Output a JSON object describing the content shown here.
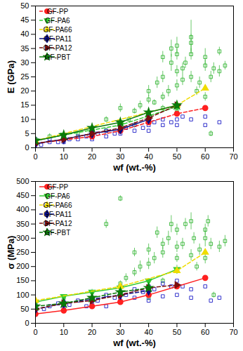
{
  "chart_data": [
    {
      "type": "scatter",
      "x_label": "wf (wt.-%)",
      "y_label": "E (GPa)",
      "xlim": [
        0,
        70
      ],
      "xticks": [
        0,
        10,
        20,
        30,
        40,
        50,
        60,
        70
      ],
      "ylim": [
        0,
        50
      ],
      "yticks": [
        0,
        5,
        10,
        15,
        20,
        25,
        30,
        35,
        40,
        45,
        50
      ],
      "grid": false,
      "legend": "upper left",
      "series": [
        {
          "name": "GF-PP",
          "color": "#ff2020",
          "marker": "circle",
          "line_style": "dashed",
          "x": [
            0,
            20,
            30,
            40,
            50,
            60
          ],
          "values": [
            1.5,
            4,
            6,
            9,
            12,
            14
          ]
        },
        {
          "name": "GF-PA6",
          "color": "#33cc33",
          "marker": "triangle-down",
          "line_style": "dashed",
          "x": [
            0,
            10,
            30,
            50
          ],
          "values": [
            2.5,
            4.5,
            8,
            14.5
          ]
        },
        {
          "name": "GF-PA66",
          "color": "#f0dc00",
          "marker": "triangle-up",
          "line_style": "dashed",
          "x": [
            0,
            50,
            60
          ],
          "values": [
            2.5,
            15,
            21
          ]
        },
        {
          "name": "GF-PA11",
          "color": "#0a0a80",
          "marker": "diamond",
          "line_style": "solid",
          "x": [
            0,
            10,
            20,
            30,
            40
          ],
          "values": [
            1.5,
            3,
            5,
            6.5,
            10
          ]
        },
        {
          "name": "GF-PA12",
          "color": "#7a1010",
          "marker": "triangle-right",
          "line_style": "dashed",
          "x": [
            0,
            10,
            20,
            30,
            40,
            50
          ],
          "values": [
            1.5,
            3,
            5,
            7,
            10.5,
            15
          ]
        },
        {
          "name": "GF-PBT",
          "color": "#0a7a0a",
          "marker": "star",
          "line_style": "solid",
          "x": [
            0,
            10,
            20,
            30,
            40,
            50
          ],
          "values": [
            2.5,
            4.5,
            7,
            9,
            12.5,
            15
          ]
        }
      ],
      "scatter_points": [
        {
          "color": "#44bb44",
          "marker": "square",
          "x": [
            20,
            25,
            30,
            30,
            33,
            35,
            37,
            40,
            40,
            40,
            42,
            43,
            45,
            45,
            45,
            47,
            48,
            48,
            50,
            50,
            50,
            50,
            52,
            52,
            53,
            55,
            55,
            55,
            57,
            58,
            60,
            60,
            60,
            62,
            63,
            65,
            65,
            67,
            62,
            10,
            15,
            0,
            5,
            25,
            35,
            45,
            50,
            55
          ],
          "y": [
            5,
            6,
            9,
            14,
            10,
            13,
            15,
            12,
            17,
            20,
            16,
            23,
            14,
            18,
            25,
            20,
            30,
            35,
            22,
            27,
            33,
            13,
            28,
            24,
            30,
            39,
            25,
            33,
            20,
            23,
            18,
            29,
            32,
            25,
            28,
            34,
            27,
            29,
            5,
            4,
            5,
            3,
            4,
            10,
            8,
            32,
            36,
            37
          ],
          "error": [
            1,
            1,
            1,
            1.5,
            1,
            1,
            1.5,
            1,
            1.5,
            2,
            1,
            2,
            1,
            1.5,
            2,
            2,
            3,
            3,
            2,
            2,
            2,
            1,
            2,
            2,
            2,
            6,
            2,
            2,
            1.5,
            2,
            1.5,
            2,
            3,
            2,
            2,
            1.5,
            2,
            1.5,
            1,
            1,
            1,
            0.5,
            1,
            1,
            1,
            2,
            3,
            3
          ]
        },
        {
          "color": "#3434cc",
          "marker": "square",
          "x": [
            0,
            0,
            0,
            0,
            2,
            5,
            5,
            8,
            10,
            10,
            10,
            12,
            15,
            15,
            18,
            20,
            20,
            20,
            20,
            22,
            25,
            25,
            28,
            30,
            30,
            30,
            30,
            32,
            35,
            35,
            38,
            40,
            40,
            40,
            42,
            45,
            45,
            48,
            50,
            50,
            50,
            52,
            55,
            60,
            60,
            65
          ],
          "y": [
            1,
            2,
            1.5,
            3,
            1,
            2,
            3,
            2,
            2,
            3,
            4,
            3,
            3,
            4,
            4,
            3,
            4,
            5,
            6,
            5,
            4,
            6,
            5,
            5,
            6,
            7,
            8,
            7,
            6,
            8,
            7,
            6,
            8,
            10,
            9,
            8,
            10,
            9,
            8,
            10,
            12,
            11,
            10,
            8,
            11,
            9
          ]
        }
      ]
    },
    {
      "type": "scatter",
      "x_label": "wf (wt.-%)",
      "y_label": "σ (MPa)",
      "xlim": [
        0,
        70
      ],
      "xticks": [
        0,
        10,
        20,
        30,
        40,
        50,
        60,
        70
      ],
      "ylim": [
        0,
        500
      ],
      "yticks": [
        0,
        50,
        100,
        150,
        200,
        250,
        300,
        350,
        400,
        450,
        500
      ],
      "grid": false,
      "legend": "upper left",
      "series": [
        {
          "name": "GF-PP",
          "color": "#ff2020",
          "marker": "circle",
          "line_style": "solid",
          "x": [
            0,
            10,
            20,
            30,
            40,
            50,
            60
          ],
          "values": [
            33,
            45,
            60,
            75,
            100,
            130,
            160
          ]
        },
        {
          "name": "GF-PA6",
          "color": "#33cc33",
          "marker": "triangle-down",
          "line_style": "solid",
          "x": [
            0,
            10,
            20,
            30,
            40,
            50
          ],
          "values": [
            75,
            95,
            110,
            125,
            150,
            190
          ]
        },
        {
          "name": "GF-PA66",
          "color": "#f0dc00",
          "marker": "triangle-up",
          "line_style": "dashed",
          "x": [
            0,
            30,
            50,
            60
          ],
          "values": [
            80,
            130,
            185,
            250
          ]
        },
        {
          "name": "GF-PA11",
          "color": "#0a0a80",
          "marker": "diamond",
          "line_style": "dashed",
          "x": [
            0,
            10,
            20,
            30,
            40
          ],
          "values": [
            50,
            70,
            85,
            100,
            115
          ]
        },
        {
          "name": "GF-PA12",
          "color": "#7a1010",
          "marker": "triangle-right",
          "line_style": "dashed",
          "x": [
            0,
            10,
            20,
            30,
            40,
            50
          ],
          "values": [
            50,
            70,
            80,
            100,
            125,
            135
          ]
        },
        {
          "name": "GF-PBT",
          "color": "#0a7a0a",
          "marker": "star",
          "line_style": "dashed",
          "x": [
            0,
            10,
            20,
            30,
            40
          ],
          "values": [
            60,
            70,
            90,
            110,
            125
          ]
        }
      ],
      "scatter_points": [
        {
          "color": "#44bb44",
          "marker": "square",
          "x": [
            0,
            10,
            20,
            25,
            30,
            30,
            32,
            35,
            35,
            37,
            40,
            40,
            40,
            42,
            43,
            45,
            45,
            45,
            47,
            48,
            50,
            50,
            50,
            50,
            52,
            53,
            55,
            55,
            56,
            57,
            58,
            60,
            60,
            60,
            61,
            62,
            65,
            67,
            63,
            20,
            40
          ],
          "y": [
            70,
            90,
            110,
            350,
            140,
            440,
            160,
            180,
            250,
            200,
            130,
            210,
            260,
            230,
            320,
            150,
            250,
            280,
            300,
            350,
            190,
            230,
            270,
            330,
            280,
            350,
            360,
            240,
            300,
            200,
            260,
            230,
            300,
            330,
            360,
            280,
            270,
            290,
            100,
            80,
            90
          ],
          "error": [
            5,
            10,
            10,
            15,
            10,
            10,
            15,
            15,
            15,
            20,
            10,
            20,
            20,
            20,
            20,
            10,
            20,
            20,
            25,
            30,
            15,
            15,
            20,
            20,
            20,
            20,
            30,
            20,
            20,
            15,
            20,
            20,
            30,
            20,
            20,
            20,
            20,
            20,
            10,
            10,
            10
          ]
        },
        {
          "color": "#3434cc",
          "marker": "square",
          "x": [
            0,
            0,
            0,
            0,
            3,
            5,
            8,
            10,
            10,
            12,
            15,
            18,
            20,
            20,
            22,
            25,
            25,
            28,
            30,
            30,
            30,
            32,
            35,
            35,
            38,
            40,
            40,
            40,
            42,
            45,
            45,
            48,
            50,
            50,
            52,
            55,
            55,
            60,
            60,
            62,
            65
          ],
          "y": [
            30,
            45,
            60,
            70,
            50,
            60,
            70,
            55,
            75,
            65,
            80,
            60,
            70,
            90,
            80,
            60,
            100,
            90,
            80,
            110,
            130,
            100,
            90,
            120,
            110,
            80,
            100,
            130,
            120,
            95,
            140,
            130,
            100,
            150,
            130,
            90,
            120,
            130,
            160,
            80,
            90
          ]
        }
      ]
    }
  ]
}
